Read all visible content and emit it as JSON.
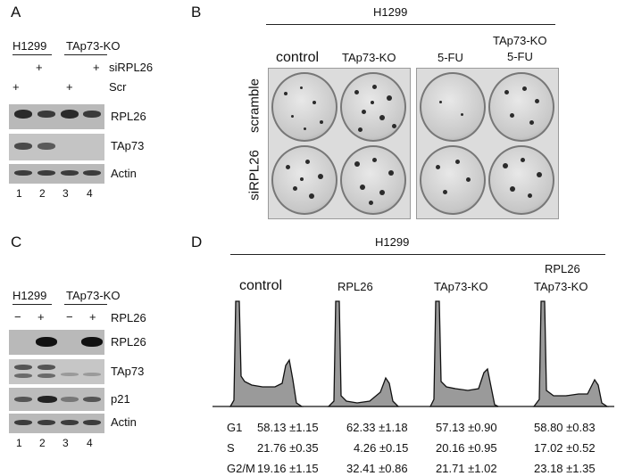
{
  "panels": {
    "A": {
      "letter": "A",
      "groups": [
        "H1299",
        "TAp73-KO"
      ],
      "rows": [
        {
          "label": "siRPL26",
          "marks": [
            "",
            "+",
            "",
            "+"
          ]
        },
        {
          "label": "Scr",
          "marks": [
            "+",
            "",
            "+",
            ""
          ]
        }
      ],
      "blots": [
        "RPL26",
        "TAp73",
        "Actin"
      ],
      "lanes": [
        "1",
        "2",
        "3",
        "4"
      ]
    },
    "B": {
      "letter": "B",
      "cell_line": "H1299",
      "columns": [
        "control",
        "TAp73-KO",
        "5-FU",
        "TAp73-KO",
        "5-FU"
      ],
      "rows": [
        "scramble",
        "siRPL26"
      ]
    },
    "C": {
      "letter": "C",
      "groups": [
        "H1299",
        "TAp73-KO"
      ],
      "row": {
        "label": "RPL26",
        "marks": [
          "−",
          "+",
          "−",
          "+"
        ]
      },
      "blots": [
        "RPL26",
        "TAp73",
        "p21",
        "Actin"
      ],
      "lanes": [
        "1",
        "2",
        "3",
        "4"
      ]
    },
    "D": {
      "letter": "D",
      "cell_line": "H1299",
      "conditions": [
        "control",
        "RPL26",
        "TAp73-KO",
        "RPL26",
        "TAp73-KO"
      ],
      "phases": [
        "G1",
        "S",
        "G2/M"
      ],
      "values": [
        [
          "58.13 ±1.15",
          "62.33 ±1.18",
          "57.13 ±0.90",
          "58.80 ±0.83"
        ],
        [
          "21.76 ±0.35",
          "4.26 ±0.15",
          "20.16 ±0.95",
          "17.02 ±0.52"
        ],
        [
          "19.16 ±1.15",
          "32.41 ±0.86",
          "21.71 ±1.02",
          "23.18 ±1.35"
        ]
      ]
    }
  }
}
